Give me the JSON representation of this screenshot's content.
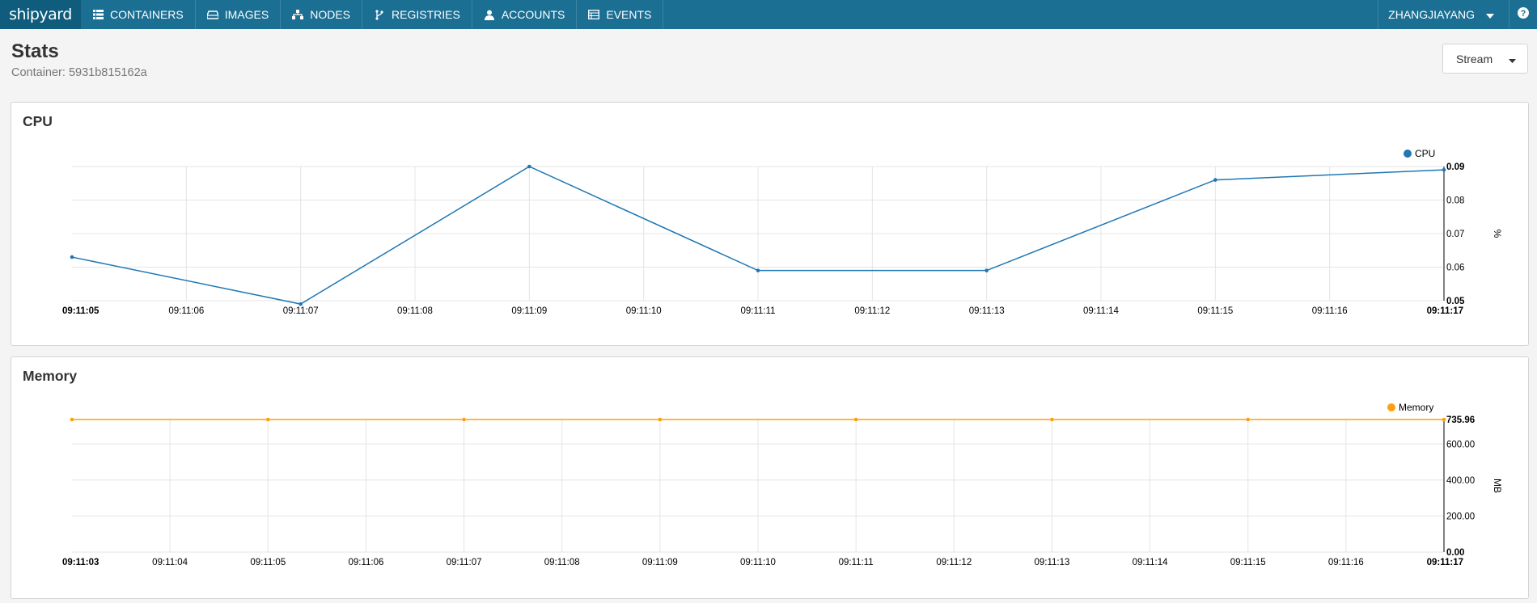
{
  "app": {
    "logo": "shipyard",
    "nav": [
      {
        "label": "CONTAINERS",
        "icon": "grid-icon"
      },
      {
        "label": "IMAGES",
        "icon": "disk-icon"
      },
      {
        "label": "NODES",
        "icon": "sitemap-icon"
      },
      {
        "label": "REGISTRIES",
        "icon": "fork-icon"
      },
      {
        "label": "ACCOUNTS",
        "icon": "user-icon"
      },
      {
        "label": "EVENTS",
        "icon": "list-icon"
      }
    ],
    "user": "ZHANGJIAYANG",
    "help_icon": "question-icon"
  },
  "page": {
    "title": "Stats",
    "container_label": "Container:",
    "container_id": "5931b815162a",
    "mode_select": "Stream"
  },
  "colors": {
    "nav_bg": "#1b6f93",
    "cpu": "#1f77b4",
    "memory": "#ff9f0e"
  },
  "chart_data": [
    {
      "type": "line",
      "title": "CPU",
      "ylabel": "%",
      "series": [
        {
          "name": "CPU",
          "values": [
            0.063,
            0.049,
            0.09,
            0.059,
            0.059,
            0.086,
            0.089
          ]
        }
      ],
      "x": [
        "09:11:05",
        "09:11:07",
        "09:11:09",
        "09:11:11",
        "09:11:13",
        "09:11:15",
        "09:11:17"
      ],
      "x_ticks": [
        "09:11:05",
        "09:11:06",
        "09:11:07",
        "09:11:08",
        "09:11:09",
        "09:11:10",
        "09:11:11",
        "09:11:12",
        "09:11:13",
        "09:11:14",
        "09:11:15",
        "09:11:16",
        "09:11:17"
      ],
      "y_ticks": [
        "0.09",
        "0.08",
        "0.07",
        "0.06",
        "0.05"
      ],
      "ylim": [
        0.05,
        0.09
      ],
      "grid": true,
      "legend": "top-right"
    },
    {
      "type": "line",
      "title": "Memory",
      "ylabel": "MB",
      "series": [
        {
          "name": "Memory",
          "values": [
            735.96,
            735.96,
            735.96,
            735.96,
            735.96,
            735.96,
            735.96,
            735.96
          ]
        }
      ],
      "x": [
        "09:11:03",
        "09:11:05",
        "09:11:07",
        "09:11:09",
        "09:11:11",
        "09:11:13",
        "09:11:15",
        "09:11:17"
      ],
      "x_ticks": [
        "09:11:03",
        "09:11:04",
        "09:11:05",
        "09:11:06",
        "09:11:07",
        "09:11:08",
        "09:11:09",
        "09:11:10",
        "09:11:11",
        "09:11:12",
        "09:11:13",
        "09:11:14",
        "09:11:15",
        "09:11:16",
        "09:11:17"
      ],
      "y_ticks": [
        "735.96",
        "600.00",
        "400.00",
        "200.00",
        "0.00"
      ],
      "ylim": [
        0,
        735.96
      ],
      "grid": true,
      "legend": "top-right"
    }
  ]
}
